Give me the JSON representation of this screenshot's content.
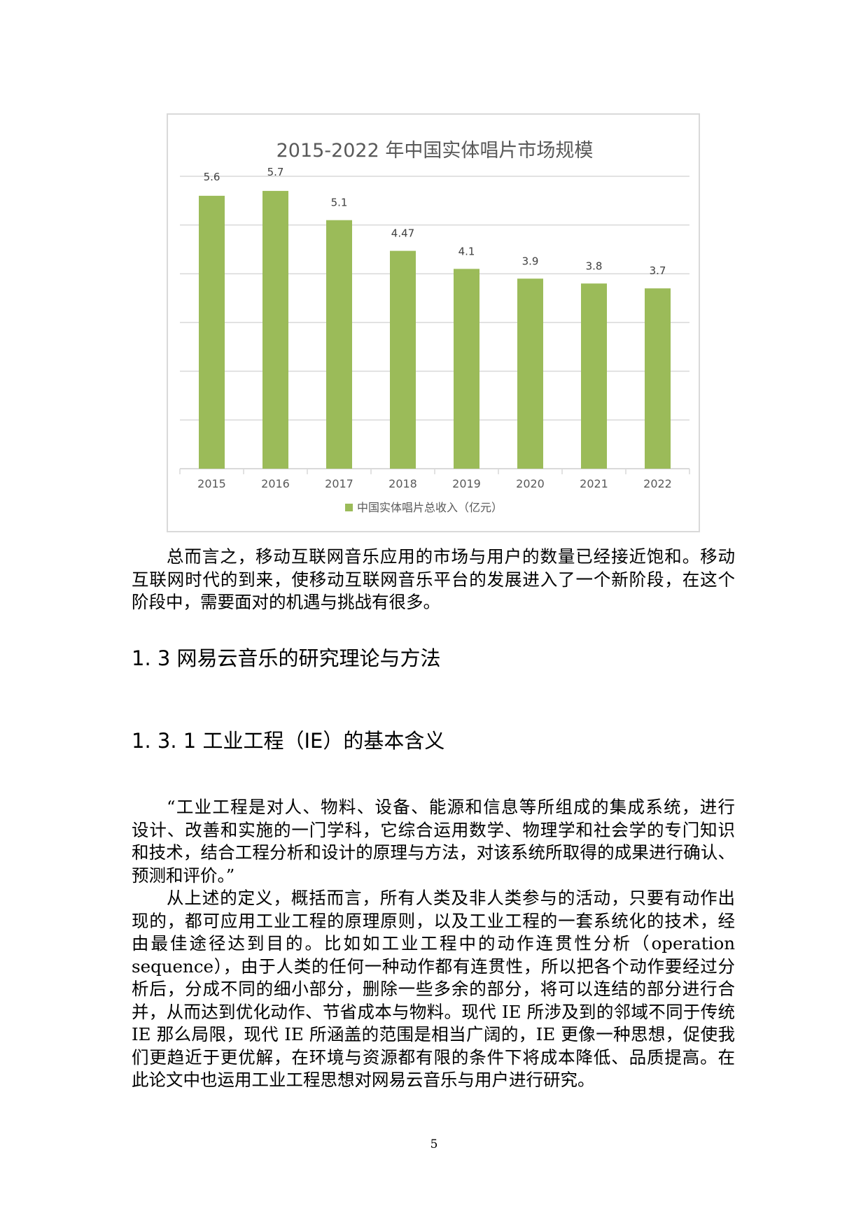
{
  "chart_data": {
    "type": "bar",
    "title": "2015-2022 年中国实体唱片市场规模",
    "categories": [
      "2015",
      "2016",
      "2017",
      "2018",
      "2019",
      "2020",
      "2021",
      "2022"
    ],
    "series": [
      {
        "name": "中国实体唱片总收入（亿元）",
        "values": [
          5.6,
          5.7,
          5.1,
          4.47,
          4.1,
          3.9,
          3.8,
          3.7
        ]
      }
    ],
    "data_labels": [
      "5.6",
      "5.7",
      "5.1",
      "4.47",
      "4.1",
      "3.9",
      "3.8",
      "3.7"
    ],
    "ylim": [
      0,
      6
    ],
    "grid": true,
    "y_tick_labels_shown": false,
    "legend": "bottom",
    "bar_color": "#9bbb59"
  },
  "paragraph1": [
    "总而言之，移动互联网音乐应用的市场与用户的数量已经接近饱和。移动",
    "互联网时代的到来，使移动互联网音乐平台的发展进入了一个新阶段，在这个",
    "阶段中，需要面对的机遇与挑战有很多。"
  ],
  "heading_1_3": "1. 3 网易云音乐的研究理论与方法",
  "heading_1_3_1": "1. 3. 1 工业工程（IE）的基本含义",
  "paragraph2": [
    "“工业工程是对人、物料、设备、能源和信息等所组成的集成系统，进行",
    "设计、改善和实施的一门学科，它综合运用数学、物理学和社会学的专门知识",
    "和技术，结合工程分析和设计的原理与方法，对该系统所取得的成果进行确认、",
    "预测和评价。”"
  ],
  "paragraph3": [
    "从上述的定义，概括而言，所有人类及非人类参与的活动，只要有动作出",
    "现的，都可应用工业工程的原理原则，以及工业工程的一套系统化的技术，经",
    "由最佳途径达到目的。比如如工业工程中的动作连贯性分析（operation",
    "sequence），由于人类的任何一种动作都有连贯性，所以把各个动作要经过分",
    "析后，分成不同的细小部分，删除一些多余的部分，将可以连结的部分进行合",
    "并，从而达到优化动作、节省成本与物料。现代 IE 所涉及到的邻域不同于传统",
    "IE 那么局限，现代 IE 所涵盖的范围是相当广阔的，IE 更像一种思想，促使我",
    "们更趋近于更优解，在环境与资源都有限的条件下将成本降低、品质提高。在",
    "此论文中也运用工业工程思想对网易云音乐与用户进行研究。"
  ],
  "page_number": "5"
}
